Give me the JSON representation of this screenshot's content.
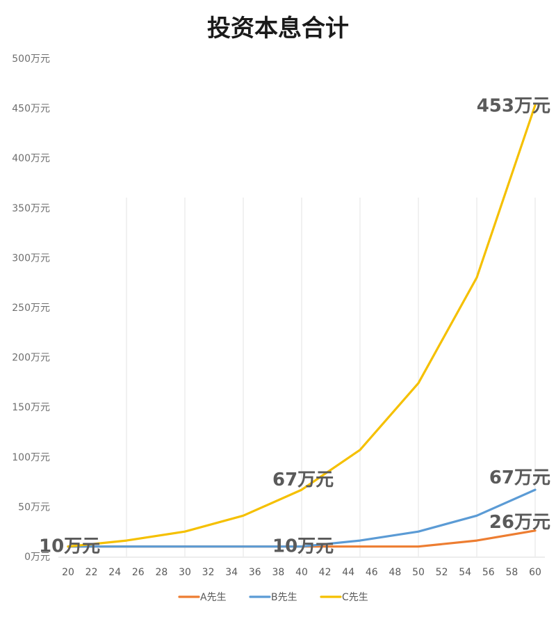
{
  "chart_data": {
    "type": "line",
    "title": "投资本息合计",
    "xlabel": "",
    "ylabel": "",
    "x_ticks": [
      "20",
      "22",
      "24",
      "26",
      "28",
      "30",
      "32",
      "34",
      "36",
      "38",
      "40",
      "42",
      "44",
      "46",
      "48",
      "50",
      "52",
      "54",
      "56",
      "58",
      "60"
    ],
    "y_ticks": [
      "0万元",
      "50万元",
      "100万元",
      "150万元",
      "200万元",
      "250万元",
      "300万元",
      "350万元",
      "400万元",
      "450万元",
      "500万元"
    ],
    "xlim": [
      20,
      60
    ],
    "ylim": [
      0,
      500
    ],
    "grid": "vertical lines at every 5 years",
    "legend_position": "bottom",
    "series": [
      {
        "name": "A先生",
        "color": "#ed7d31",
        "x": [
          20,
          25,
          30,
          35,
          40,
          45,
          50,
          55,
          60
        ],
        "y": [
          10,
          10,
          10,
          10,
          10,
          10,
          10,
          16,
          26
        ]
      },
      {
        "name": "B先生",
        "color": "#5b9bd5",
        "x": [
          20,
          25,
          30,
          35,
          40,
          45,
          50,
          55,
          60
        ],
        "y": [
          10,
          10,
          10,
          10,
          10,
          16,
          25,
          41,
          67
        ]
      },
      {
        "name": "C先生",
        "color": "#f5c000",
        "x": [
          20,
          25,
          30,
          35,
          40,
          45,
          50,
          55,
          60
        ],
        "y": [
          10,
          16,
          25,
          41,
          67,
          107,
          174,
          280,
          453
        ]
      }
    ],
    "annotations": [
      {
        "text": "10万元",
        "x": 20,
        "y": 10
      },
      {
        "text": "10万元",
        "x": 40,
        "y": 10
      },
      {
        "text": "67万元",
        "x": 40,
        "y": 67
      },
      {
        "text": "67万元",
        "x": 60,
        "y": 67
      },
      {
        "text": "26万元",
        "x": 60,
        "y": 26
      },
      {
        "text": "453万元",
        "x": 60,
        "y": 453
      }
    ]
  }
}
